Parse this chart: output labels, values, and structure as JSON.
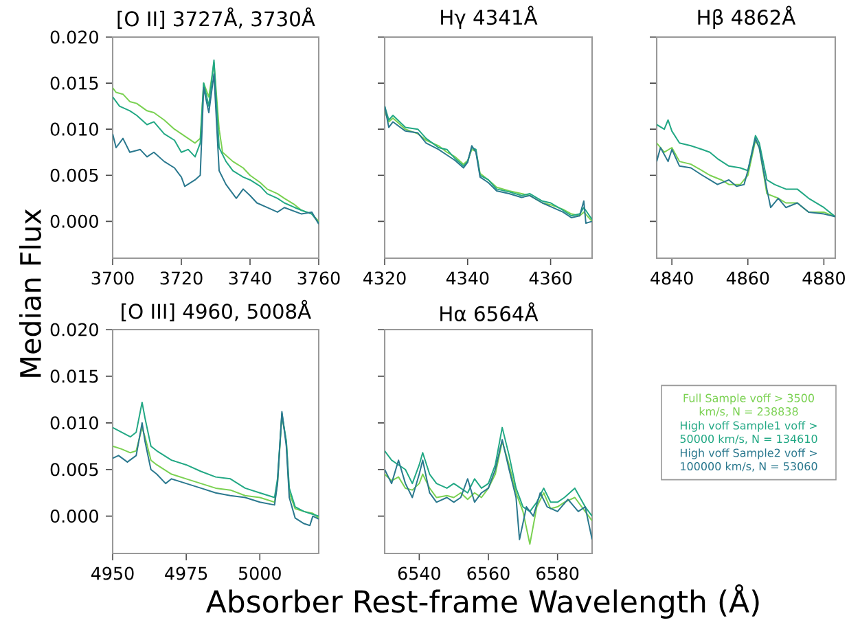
{
  "chart_data": [
    {
      "type": "line",
      "title": "[O II] 3727Å, 3730Å",
      "ylabel": "Median Flux",
      "xlim": [
        3700,
        3760
      ],
      "xticks": [
        3700,
        3720,
        3740,
        3760
      ],
      "ylim": [
        -0.004,
        0.02
      ],
      "yticks": [
        {
          "value": 0,
          "label": "0.000"
        },
        {
          "value": 0.005,
          "label": "0.005"
        },
        {
          "value": 0.01,
          "label": "0.010"
        },
        {
          "value": 0.015,
          "label": "0.015"
        },
        {
          "value": 0.02,
          "label": "0.020"
        }
      ],
      "series": [
        {
          "color": "#7ad151",
          "x": [
            3700,
            3701,
            3703,
            3705,
            3707,
            3710,
            3712,
            3715,
            3718,
            3720,
            3722,
            3724,
            3725.5,
            3726.5,
            3728,
            3729.5,
            3731,
            3732,
            3735,
            3738,
            3740,
            3743,
            3745,
            3748,
            3750,
            3753,
            3755,
            3758,
            3760
          ],
          "values": [
            0.0145,
            0.014,
            0.0138,
            0.013,
            0.0128,
            0.012,
            0.0118,
            0.011,
            0.01,
            0.0095,
            0.009,
            0.0085,
            0.009,
            0.015,
            0.0135,
            0.0172,
            0.01,
            0.0075,
            0.0065,
            0.0058,
            0.005,
            0.0042,
            0.0035,
            0.003,
            0.0025,
            0.0018,
            0.0012,
            0.0008,
            0.0
          ]
        },
        {
          "color": "#22a884",
          "x": [
            3700,
            3702,
            3705,
            3707,
            3710,
            3712,
            3715,
            3718,
            3720,
            3722,
            3724,
            3725.5,
            3726.5,
            3728,
            3729.5,
            3731,
            3733,
            3735,
            3738,
            3740,
            3743,
            3745,
            3748,
            3750,
            3753,
            3755,
            3758,
            3760
          ],
          "values": [
            0.0135,
            0.0125,
            0.012,
            0.0115,
            0.0105,
            0.0108,
            0.0095,
            0.0088,
            0.0075,
            0.0078,
            0.007,
            0.0085,
            0.015,
            0.0125,
            0.0175,
            0.008,
            0.0065,
            0.0055,
            0.0048,
            0.0045,
            0.0038,
            0.003,
            0.0025,
            0.002,
            0.0015,
            0.0012,
            0.0008,
            -0.0002
          ]
        },
        {
          "color": "#2a788e",
          "x": [
            3700,
            3701,
            3703,
            3705,
            3708,
            3710,
            3712,
            3715,
            3718,
            3720,
            3721,
            3724,
            3725.5,
            3726.5,
            3728,
            3729.5,
            3731,
            3733,
            3736,
            3738,
            3740,
            3742,
            3745,
            3748,
            3750,
            3755,
            3758,
            3760
          ],
          "values": [
            0.0095,
            0.008,
            0.009,
            0.0075,
            0.0078,
            0.007,
            0.0075,
            0.0065,
            0.0058,
            0.0048,
            0.0038,
            0.0045,
            0.005,
            0.0145,
            0.0118,
            0.016,
            0.0055,
            0.004,
            0.0025,
            0.0035,
            0.0028,
            0.002,
            0.0015,
            0.001,
            0.0015,
            0.0008,
            0.001,
            -0.0003
          ]
        }
      ]
    },
    {
      "type": "line",
      "title": "Hγ 4341Å",
      "xlim": [
        4320,
        4370
      ],
      "xticks": [
        4320,
        4340,
        4360
      ],
      "ylim": [
        -0.004,
        0.02
      ],
      "yticks": [
        {
          "value": 0,
          "label": null
        },
        {
          "value": 0.005,
          "label": null
        },
        {
          "value": 0.01,
          "label": null
        },
        {
          "value": 0.015,
          "label": null
        },
        {
          "value": 0.02,
          "label": null
        }
      ],
      "tick_labels": "x",
      "series": [
        {
          "color": "#7ad151",
          "x": [
            4320,
            4321,
            4322,
            4325,
            4328,
            4330,
            4333,
            4335,
            4337,
            4339,
            4340,
            4341,
            4342,
            4343,
            4345,
            4347,
            4350,
            4353,
            4355,
            4358,
            4360,
            4363,
            4365,
            4367,
            4368,
            4370
          ],
          "values": [
            0.012,
            0.0108,
            0.0112,
            0.01,
            0.0095,
            0.0088,
            0.0082,
            0.0075,
            0.007,
            0.0062,
            0.0066,
            0.0078,
            0.0076,
            0.0052,
            0.0045,
            0.0037,
            0.0033,
            0.003,
            0.0028,
            0.002,
            0.0018,
            0.0013,
            0.0008,
            0.0006,
            0.001,
            0.0
          ]
        },
        {
          "color": "#22a884",
          "x": [
            4320,
            4321,
            4322,
            4325,
            4328,
            4330,
            4333,
            4335,
            4337,
            4339,
            4340,
            4341,
            4342,
            4343,
            4345,
            4347,
            4350,
            4353,
            4355,
            4358,
            4360,
            4363,
            4365,
            4367,
            4368,
            4370
          ],
          "values": [
            0.0125,
            0.011,
            0.0115,
            0.0102,
            0.01,
            0.009,
            0.008,
            0.0078,
            0.0068,
            0.006,
            0.0065,
            0.008,
            0.0078,
            0.005,
            0.0045,
            0.0035,
            0.0032,
            0.0028,
            0.003,
            0.0022,
            0.002,
            0.0012,
            0.0006,
            0.0008,
            0.0015,
            0.0002
          ]
        },
        {
          "color": "#2a788e",
          "x": [
            4320,
            4321,
            4322,
            4325,
            4328,
            4330,
            4333,
            4335,
            4337,
            4339,
            4340,
            4341,
            4342,
            4343,
            4345,
            4347,
            4350,
            4353,
            4355,
            4358,
            4360,
            4363,
            4365,
            4367,
            4368,
            4368.5,
            4370
          ],
          "values": [
            0.0125,
            0.0102,
            0.0108,
            0.0098,
            0.0096,
            0.0085,
            0.0078,
            0.0072,
            0.0066,
            0.0058,
            0.0064,
            0.0082,
            0.0075,
            0.0048,
            0.0042,
            0.0033,
            0.003,
            0.0026,
            0.0028,
            0.002,
            0.0016,
            0.001,
            0.0004,
            0.0006,
            0.0022,
            -0.0002,
            0.0
          ]
        }
      ]
    },
    {
      "type": "line",
      "title": "Hβ 4862Å",
      "xlim": [
        4836,
        4883
      ],
      "xticks": [
        4840,
        4860,
        4880
      ],
      "ylim": [
        -0.004,
        0.02
      ],
      "yticks": [
        {
          "value": 0,
          "label": null
        },
        {
          "value": 0.005,
          "label": null
        },
        {
          "value": 0.01,
          "label": null
        },
        {
          "value": 0.015,
          "label": null
        },
        {
          "value": 0.02,
          "label": null
        }
      ],
      "tick_labels": "x",
      "series": [
        {
          "color": "#7ad151",
          "x": [
            4836,
            4838,
            4840,
            4842,
            4845,
            4848,
            4850,
            4853,
            4855,
            4858,
            4860,
            4862,
            4863,
            4865,
            4868,
            4870,
            4873,
            4876,
            4880,
            4883
          ],
          "values": [
            0.0085,
            0.0075,
            0.008,
            0.0065,
            0.0062,
            0.0055,
            0.005,
            0.0045,
            0.004,
            0.004,
            0.005,
            0.0088,
            0.008,
            0.003,
            0.0025,
            0.002,
            0.002,
            0.001,
            0.001,
            0.0005
          ]
        },
        {
          "color": "#22a884",
          "x": [
            4836,
            4838,
            4839,
            4840,
            4842,
            4845,
            4848,
            4850,
            4852,
            4855,
            4858,
            4860,
            4862,
            4863,
            4865,
            4867,
            4870,
            4873,
            4876,
            4880,
            4883
          ],
          "values": [
            0.0105,
            0.01,
            0.011,
            0.0098,
            0.0085,
            0.0082,
            0.0078,
            0.0075,
            0.0068,
            0.006,
            0.0058,
            0.0055,
            0.0093,
            0.0085,
            0.0045,
            0.004,
            0.0035,
            0.0035,
            0.0025,
            0.0015,
            0.0005
          ]
        },
        {
          "color": "#2a788e",
          "x": [
            4836,
            4837,
            4839,
            4840,
            4842,
            4845,
            4848,
            4850,
            4852,
            4855,
            4857,
            4859,
            4860,
            4862,
            4863,
            4865,
            4866,
            4868,
            4870,
            4873,
            4876,
            4880,
            4883
          ],
          "values": [
            0.0065,
            0.008,
            0.0065,
            0.0078,
            0.006,
            0.0058,
            0.005,
            0.0045,
            0.004,
            0.0045,
            0.0038,
            0.004,
            0.0055,
            0.009,
            0.008,
            0.0035,
            0.0015,
            0.0025,
            0.0015,
            0.002,
            0.001,
            0.0008,
            0.0005
          ]
        }
      ]
    },
    {
      "type": "line",
      "title": "[O III] 4960, 5008Å",
      "xlim": [
        4950,
        5020
      ],
      "xticks": [
        4950,
        4975,
        5000
      ],
      "ylim": [
        -0.004,
        0.02
      ],
      "yticks": [
        {
          "value": 0,
          "label": "0.000"
        },
        {
          "value": 0.005,
          "label": "0.005"
        },
        {
          "value": 0.01,
          "label": "0.010"
        },
        {
          "value": 0.015,
          "label": "0.015"
        },
        {
          "value": 0.02,
          "label": "0.020"
        }
      ],
      "series": [
        {
          "color": "#7ad151",
          "x": [
            4950,
            4953,
            4956,
            4958,
            4960,
            4961,
            4963,
            4965,
            4970,
            4975,
            4980,
            4985,
            4990,
            4995,
            5000,
            5005,
            5006,
            5007.5,
            5009,
            5010,
            5012,
            5015,
            5018,
            5020
          ],
          "values": [
            0.0075,
            0.0072,
            0.0068,
            0.007,
            0.0095,
            0.0085,
            0.006,
            0.0055,
            0.0045,
            0.004,
            0.0035,
            0.003,
            0.0028,
            0.0022,
            0.002,
            0.0015,
            0.0035,
            0.0108,
            0.008,
            0.0025,
            0.0008,
            0.0005,
            0.0003,
            -0.0002
          ]
        },
        {
          "color": "#22a884",
          "x": [
            4950,
            4953,
            4956,
            4958,
            4960,
            4961,
            4963,
            4965,
            4970,
            4975,
            4980,
            4985,
            4990,
            4995,
            5000,
            5005,
            5006,
            5007.5,
            5009,
            5010,
            5012,
            5015,
            5018,
            5020
          ],
          "values": [
            0.0095,
            0.009,
            0.0085,
            0.009,
            0.0122,
            0.0105,
            0.0075,
            0.007,
            0.006,
            0.0055,
            0.0048,
            0.0042,
            0.004,
            0.003,
            0.0025,
            0.002,
            0.004,
            0.011,
            0.008,
            0.003,
            0.001,
            0.0005,
            0.0002,
            0.0
          ]
        },
        {
          "color": "#2a788e",
          "x": [
            4950,
            4952,
            4955,
            4958,
            4960,
            4961,
            4963,
            4965,
            4968,
            4970,
            4975,
            4980,
            4985,
            4990,
            4995,
            5000,
            5005,
            5006,
            5007.5,
            5009,
            5010,
            5012,
            5015,
            5017,
            5018,
            5020
          ],
          "values": [
            0.0062,
            0.0065,
            0.0058,
            0.0065,
            0.01,
            0.008,
            0.005,
            0.0045,
            0.0035,
            0.004,
            0.0035,
            0.003,
            0.0025,
            0.0022,
            0.002,
            0.0015,
            0.0012,
            0.0035,
            0.0112,
            0.0075,
            0.002,
            -0.0002,
            -0.0008,
            -0.001,
            0.0,
            -0.0003
          ]
        }
      ]
    },
    {
      "type": "line",
      "title": "Hα 6564Å",
      "xlabel": "Absorber Rest-frame Wavelength (Å)",
      "xlim": [
        6530,
        6590
      ],
      "xticks": [
        6540,
        6560,
        6580
      ],
      "ylim": [
        -0.004,
        0.02
      ],
      "yticks": [
        {
          "value": 0,
          "label": null
        },
        {
          "value": 0.005,
          "label": null
        },
        {
          "value": 0.01,
          "label": null
        },
        {
          "value": 0.015,
          "label": null
        },
        {
          "value": 0.02,
          "label": null
        }
      ],
      "tick_labels": "x",
      "legend": "right",
      "series": [
        {
          "name": "Full Sample voff > 3500 km/s, N = 238838",
          "color": "#7ad151",
          "x": [
            6530,
            6532,
            6534,
            6536,
            6538,
            6540,
            6541,
            6543,
            6545,
            6548,
            6550,
            6552,
            6554,
            6556,
            6558,
            6560,
            6562,
            6564,
            6566,
            6568,
            6570,
            6572,
            6574,
            6576,
            6578,
            6580,
            6582,
            6585,
            6588,
            6590
          ],
          "values": [
            0.0045,
            0.0038,
            0.0042,
            0.003,
            0.0028,
            0.0035,
            0.0045,
            0.003,
            0.002,
            0.0022,
            0.002,
            0.0025,
            0.0018,
            0.0025,
            0.002,
            0.003,
            0.0045,
            0.008,
            0.0055,
            0.0025,
            0.0005,
            -0.003,
            0.001,
            0.0025,
            0.0008,
            0.001,
            0.0015,
            0.002,
            0.0005,
            -0.0005
          ]
        },
        {
          "name": "High voff Sample1 voff > 50000 km/s, N = 134610",
          "color": "#22a884",
          "x": [
            6530,
            6532,
            6534,
            6536,
            6538,
            6540,
            6541,
            6543,
            6545,
            6548,
            6550,
            6552,
            6554,
            6556,
            6558,
            6560,
            6562,
            6564,
            6566,
            6568,
            6570,
            6572,
            6574,
            6576,
            6578,
            6580,
            6582,
            6585,
            6588,
            6590
          ],
          "values": [
            0.007,
            0.006,
            0.0055,
            0.005,
            0.0035,
            0.0055,
            0.0068,
            0.0045,
            0.0035,
            0.003,
            0.0035,
            0.003,
            0.0025,
            0.004,
            0.003,
            0.0035,
            0.0055,
            0.0095,
            0.0065,
            0.003,
            0.001,
            0.0005,
            0.0015,
            0.003,
            0.0015,
            0.0015,
            0.002,
            0.003,
            0.001,
            0.0
          ]
        },
        {
          "name": "High voff Sample2 voff > 100000 km/s, N = 53060",
          "color": "#2a788e",
          "x": [
            6530,
            6532,
            6534,
            6536,
            6538,
            6540,
            6541,
            6543,
            6545,
            6548,
            6550,
            6552,
            6554,
            6556,
            6558,
            6560,
            6562,
            6564,
            6566,
            6568,
            6569,
            6571,
            6573,
            6575,
            6577,
            6580,
            6583,
            6586,
            6588,
            6590
          ],
          "values": [
            0.005,
            0.0035,
            0.006,
            0.0035,
            0.002,
            0.0045,
            0.006,
            0.0025,
            0.0015,
            0.002,
            0.0015,
            0.002,
            0.004,
            0.0015,
            0.0025,
            0.003,
            0.005,
            0.0082,
            0.005,
            0.002,
            -0.0025,
            0.001,
            0.0,
            0.0025,
            0.001,
            0.0005,
            0.0018,
            0.0005,
            0.001,
            -0.0025
          ]
        }
      ]
    }
  ]
}
